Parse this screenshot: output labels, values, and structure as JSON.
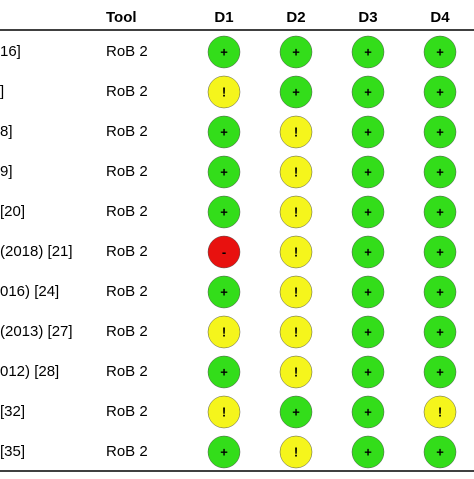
{
  "table": {
    "header": [
      "Tool",
      "D1",
      "D2",
      "D3",
      "D4"
    ],
    "symbol_colors": {
      "+": "#33dd1a",
      "!": "#f5f51c",
      "-": "#e8110f"
    },
    "rows": [
      {
        "study": "16]",
        "tool": "RoB 2",
        "judgements": [
          "+",
          "+",
          "+",
          "+"
        ]
      },
      {
        "study": "]",
        "tool": "RoB 2",
        "judgements": [
          "!",
          "+",
          "+",
          "+"
        ]
      },
      {
        "study": "8]",
        "tool": "RoB 2",
        "judgements": [
          "+",
          "!",
          "+",
          "+"
        ]
      },
      {
        "study": "9]",
        "tool": "RoB 2",
        "judgements": [
          "+",
          "!",
          "+",
          "+"
        ]
      },
      {
        "study": "[20]",
        "tool": "RoB 2",
        "judgements": [
          "+",
          "!",
          "+",
          "+"
        ]
      },
      {
        "study": "(2018) [21]",
        "tool": "RoB 2",
        "judgements": [
          "-",
          "!",
          "+",
          "+"
        ]
      },
      {
        "study": "016) [24]",
        "tool": "RoB 2",
        "judgements": [
          "+",
          "!",
          "+",
          "+"
        ]
      },
      {
        "study": "(2013) [27]",
        "tool": "RoB 2",
        "judgements": [
          "!",
          "!",
          "+",
          "+"
        ]
      },
      {
        "study": "012) [28]",
        "tool": "RoB 2",
        "judgements": [
          "+",
          "!",
          "+",
          "+"
        ]
      },
      {
        "study": "[32]",
        "tool": "RoB 2",
        "judgements": [
          "!",
          "+",
          "+",
          "!"
        ]
      },
      {
        "study": "[35]",
        "tool": "RoB 2",
        "judgements": [
          "+",
          "!",
          "+",
          "+"
        ]
      }
    ]
  }
}
